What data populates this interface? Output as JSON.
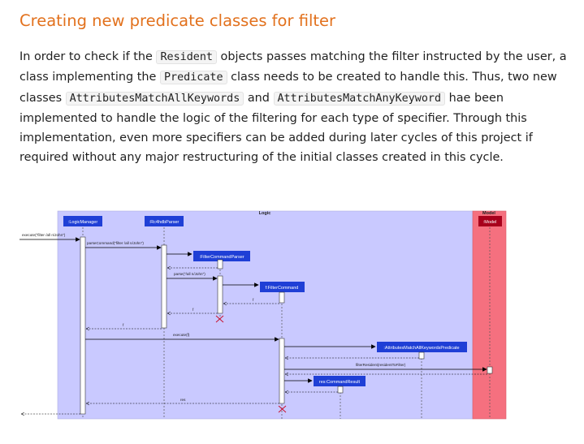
{
  "heading": "Creating new predicate classes for filter",
  "paragraph": {
    "t1": "In order to check if the ",
    "code1": "Resident",
    "t2": " objects passes matching the filter instructed by the user, a class implementing the ",
    "code2": "Predicate",
    "t3": " class needs to be created to handle this. Thus, two new classes ",
    "code3": "AttributesMatchAllKeywords",
    "t4": " and ",
    "code4": "AttributesMatchAnyKeyword",
    "t5": " hae been implemented to handle the logic of the filtering for each type of specifier. Through this implementation, even more specifiers can be added during later cycles of this project if required without any major restructuring of the initial classes created in this cycle."
  },
  "diagram": {
    "frames": {
      "logic": "Logic",
      "model": "Model"
    },
    "participants": {
      "logic_manager": ":LogicManager",
      "parser": ":Rc4hdbParser",
      "filter_parser": ":FilterCommandParser",
      "filter_command": "f:FilterCommand",
      "predicate": ":AttributesMatchAllKeywordsPredicate",
      "command_result": "res:CommandResult",
      "model": ":Model"
    },
    "messages": {
      "execute_call": "execute(\"filter /all n/John\")",
      "parse_command": "parseCommand(\"filter /all n/John\")",
      "parse": "parse(\"/all n/John\")",
      "return_f1": "f",
      "return_f2": "f",
      "return_f3": "f",
      "execute_model": "execute(f)",
      "filter_resident": "filterResident(residentToFilter)",
      "return_res": "res"
    },
    "colors": {
      "logic_frame": "#c9c9ff",
      "model_frame": "#f5707f",
      "participant": "#1f3fd6",
      "model_participant": "#a8001c"
    }
  }
}
